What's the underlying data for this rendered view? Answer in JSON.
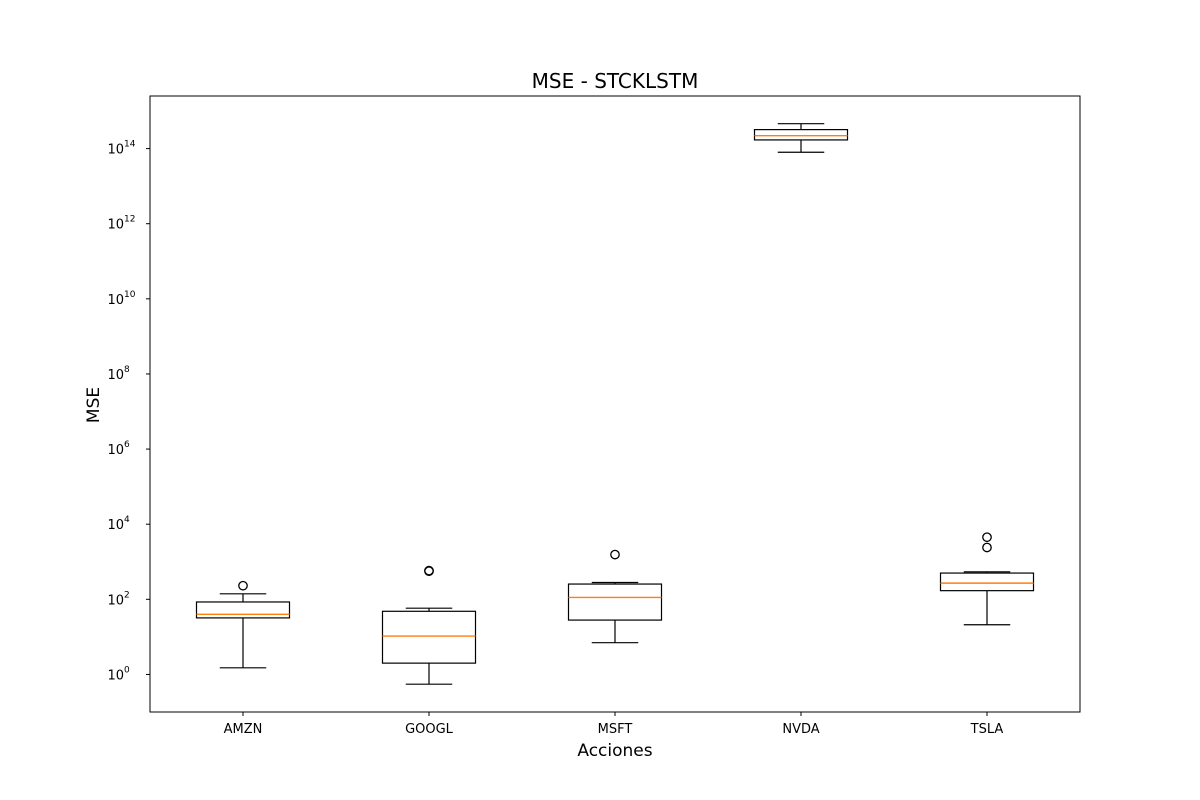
{
  "chart_data": {
    "type": "boxplot",
    "title": "MSE - STCKLSTM",
    "xlabel": "Acciones",
    "ylabel": "MSE",
    "yscale": "log",
    "ylim_exponent": [
      -1,
      15.4
    ],
    "ytick_base": "10",
    "ytick_exponents": [
      "0",
      "2",
      "4",
      "6",
      "8",
      "10",
      "12",
      "14"
    ],
    "colors": {
      "box": "#000000",
      "median": "#ff7f0e",
      "background": "#ffffff"
    },
    "categories": [
      "AMZN",
      "GOOGL",
      "MSFT",
      "NVDA",
      "TSLA"
    ],
    "series": [
      {
        "category": "AMZN",
        "whisker_low": 1.5,
        "q1": 32,
        "median": 40,
        "q3": 85,
        "whisker_high": 140,
        "outliers": [
          230
        ]
      },
      {
        "category": "GOOGL",
        "whisker_low": 0.55,
        "q1": 2.0,
        "median": 10.5,
        "q3": 48,
        "whisker_high": 58,
        "outliers": [
          560,
          580
        ]
      },
      {
        "category": "MSFT",
        "whisker_low": 7,
        "q1": 28,
        "median": 112,
        "q3": 255,
        "whisker_high": 280,
        "outliers": [
          1550
        ]
      },
      {
        "category": "NVDA",
        "whisker_low": 80000000000000.0,
        "q1": 170000000000000.0,
        "median": 220000000000000.0,
        "q3": 320000000000000.0,
        "whisker_high": 460000000000000.0,
        "outliers": []
      },
      {
        "category": "TSLA",
        "whisker_low": 21,
        "q1": 170,
        "median": 270,
        "q3": 500,
        "whisker_high": 540,
        "outliers": [
          2400,
          4500
        ]
      }
    ]
  }
}
